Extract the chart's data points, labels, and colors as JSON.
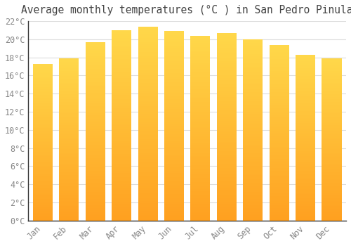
{
  "title": "Average monthly temperatures (°C ) in San Pedro Pinula",
  "months": [
    "Jan",
    "Feb",
    "Mar",
    "Apr",
    "May",
    "Jun",
    "Jul",
    "Aug",
    "Sep",
    "Oct",
    "Nov",
    "Dec"
  ],
  "values": [
    17.3,
    17.9,
    19.7,
    21.0,
    21.4,
    20.9,
    20.4,
    20.7,
    20.0,
    19.4,
    18.3,
    17.9
  ],
  "bar_color_bottom": "#FFA020",
  "bar_color_top": "#FFD84A",
  "background_color": "#FFFFFF",
  "plot_bg_color": "#FFFFFF",
  "grid_color": "#DDDDDD",
  "ylim": [
    0,
    22
  ],
  "yticks": [
    0,
    2,
    4,
    6,
    8,
    10,
    12,
    14,
    16,
    18,
    20,
    22
  ],
  "title_fontsize": 10.5,
  "tick_fontsize": 8.5,
  "title_color": "#444444",
  "tick_label_color": "#888888",
  "spine_color": "#333333",
  "bar_width": 0.75,
  "n_grad": 100
}
